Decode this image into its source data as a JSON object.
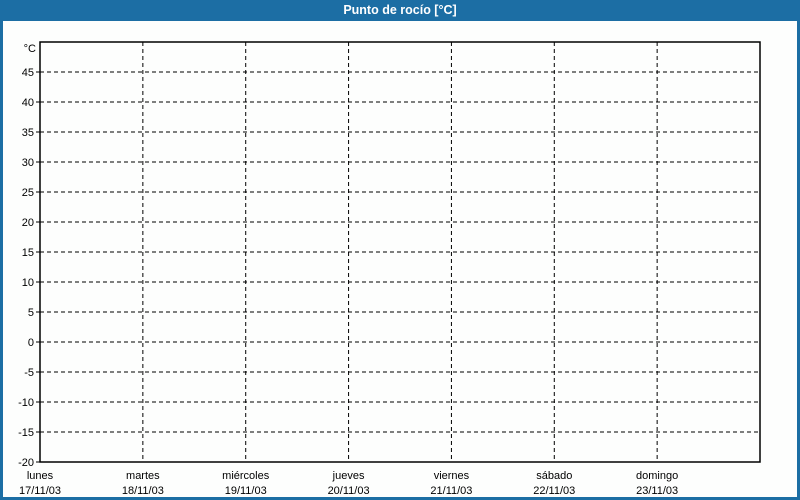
{
  "window": {
    "title": "Punto de rocío [°C]"
  },
  "colors": {
    "frame_blue": "#1c6ea4",
    "title_text": "#ffffff",
    "plot_background": "#fdfefd",
    "grid_line": "#000000",
    "axis_line": "#000000",
    "label_text": "#000000"
  },
  "chart_data": {
    "type": "line",
    "title": "Punto de rocío [°C]",
    "xlabel": "",
    "ylabel": "°C",
    "ylim": [
      -20,
      50
    ],
    "ytick_step": 5,
    "yticks": [
      45,
      40,
      35,
      30,
      25,
      20,
      15,
      10,
      5,
      0,
      -5,
      -10,
      -15,
      -20
    ],
    "grid": "dashed",
    "legend_position": "none",
    "categories": [
      "lunes",
      "martes",
      "miércoles",
      "jueves",
      "viernes",
      "sábado",
      "domingo"
    ],
    "category_dates": [
      "17/11/03",
      "18/11/03",
      "19/11/03",
      "20/11/03",
      "21/11/03",
      "22/11/03",
      "23/11/03"
    ],
    "series": []
  }
}
